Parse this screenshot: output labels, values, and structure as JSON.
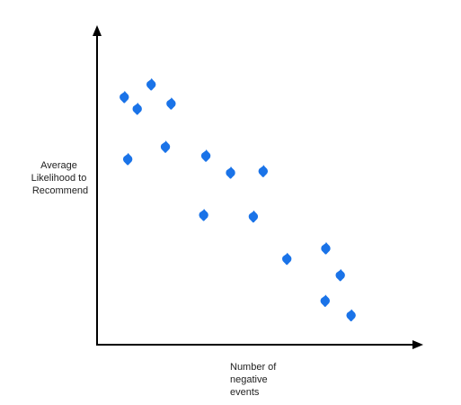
{
  "chart_data": {
    "type": "scatter",
    "title": "",
    "xlabel": "Number of negative events",
    "ylabel": "Average Likelihood to Recommend",
    "xlabel_lines": [
      "Number of",
      "negative",
      "events"
    ],
    "ylabel_lines": [
      "Average",
      "Likelihood to",
      "Recommend"
    ],
    "axis_ticks": false,
    "grid": false,
    "legend": "none",
    "xlim": [
      0,
      10
    ],
    "ylim": [
      0,
      10
    ],
    "series": [
      {
        "color": "#1a73e8",
        "marker": "diamond",
        "points": [
          {
            "x": 0.86,
            "y": 8.02
          },
          {
            "x": 1.27,
            "y": 7.64
          },
          {
            "x": 1.71,
            "y": 8.43
          },
          {
            "x": 2.34,
            "y": 7.81
          },
          {
            "x": 0.97,
            "y": 6.01
          },
          {
            "x": 2.16,
            "y": 6.41
          },
          {
            "x": 3.44,
            "y": 6.12
          },
          {
            "x": 4.22,
            "y": 5.57
          },
          {
            "x": 5.25,
            "y": 5.62
          },
          {
            "x": 3.37,
            "y": 4.2
          },
          {
            "x": 4.94,
            "y": 4.15
          },
          {
            "x": 6.0,
            "y": 2.78
          },
          {
            "x": 7.23,
            "y": 3.12
          },
          {
            "x": 7.69,
            "y": 2.25
          },
          {
            "x": 7.21,
            "y": 1.42
          },
          {
            "x": 8.03,
            "y": 0.95
          }
        ]
      }
    ]
  }
}
